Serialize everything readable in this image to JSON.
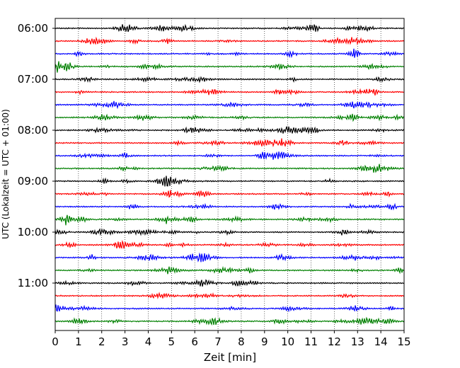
{
  "chart_data": {
    "type": "line",
    "title": "",
    "xlabel": "Zeit  [min]",
    "ylabel": "UTC (Lokalzeit = UTC + 01:00)",
    "xlim": [
      0,
      15
    ],
    "x_ticks": [
      0,
      1,
      2,
      3,
      4,
      5,
      6,
      7,
      8,
      9,
      10,
      11,
      12,
      13,
      14,
      15
    ],
    "y_tick_labels": [
      "06:00",
      "07:00",
      "08:00",
      "09:00",
      "10:00",
      "11:00"
    ],
    "trace_start": "06:00",
    "trace_interval_min": 15,
    "trace_count": 24,
    "color_cycle": [
      "#000000",
      "#ff0000",
      "#0000ff",
      "#008000"
    ],
    "vertical_grid": "dotted",
    "series_description": "seismograph helicorder traces, one per 15 minutes"
  }
}
